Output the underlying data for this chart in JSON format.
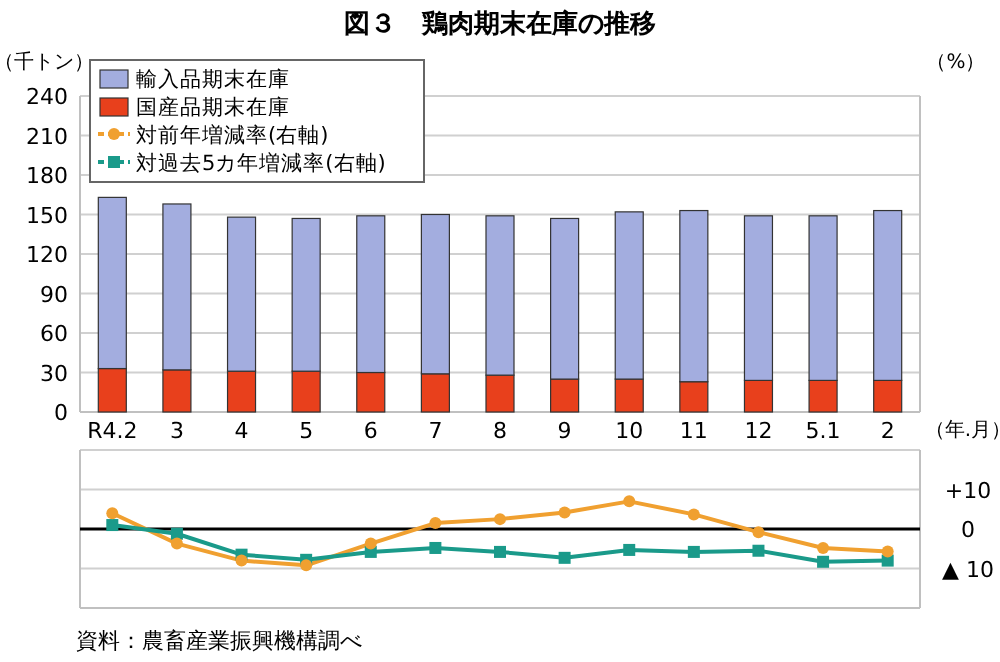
{
  "chart_data": [
    {
      "type": "bar",
      "title": "図３　鶏肉期末在庫の推移",
      "ylabel": "（千トン）",
      "xlabel": "（年.月）",
      "categories": [
        "R4.2",
        "3",
        "4",
        "5",
        "6",
        "7",
        "8",
        "9",
        "10",
        "11",
        "12",
        "5.1",
        "2"
      ],
      "stacked": true,
      "series": [
        {
          "name": "国産品期末在庫",
          "color": "#e8401c",
          "values": [
            33,
            32,
            31,
            31,
            30,
            29,
            28,
            25,
            25,
            23,
            24,
            24,
            24
          ]
        },
        {
          "name": "輸入品期末在庫",
          "color": "#a3addf",
          "values": [
            130,
            126,
            117,
            116,
            119,
            121,
            121,
            122,
            127,
            130,
            125,
            125,
            129
          ]
        }
      ],
      "ylim": [
        0,
        240
      ],
      "yticks": [
        0,
        30,
        60,
        90,
        120,
        150,
        180,
        210,
        240
      ],
      "grid": "y",
      "legend": "top left",
      "annotations": [
        "（%）"
      ]
    },
    {
      "type": "line",
      "categories": [
        null,
        null,
        null,
        null,
        null,
        null,
        null,
        null,
        null,
        null,
        null,
        null,
        null
      ],
      "tick_labels": "y",
      "series": [
        {
          "name": "対前年増減率(右軸)",
          "color": "#f0a030",
          "marker": "circle",
          "values": [
            4,
            -3.7,
            -8,
            -9.2,
            -3.7,
            1.5,
            2.5,
            4.2,
            7,
            3.7,
            -0.8,
            -4.8,
            -5.7
          ]
        },
        {
          "name": "対過去5カ年増減率(右軸)",
          "color": "#1a9a8a",
          "marker": "square",
          "values": [
            1,
            -1.2,
            -6.5,
            -7.8,
            -5.8,
            -4.8,
            -5.8,
            -7.3,
            -5.3,
            -5.8,
            -5.5,
            -8.3,
            -8
          ]
        }
      ],
      "ylim": [
        -20,
        20
      ],
      "yticks": [
        {
          "value": -20,
          "label": null
        },
        {
          "value": -10,
          "label": "▲ 10"
        },
        0,
        {
          "value": 10,
          "label": "+10"
        },
        {
          "value": 20,
          "label": null
        }
      ],
      "grid": "y",
      "ref_lines": [
        {
          "axis": "y",
          "value": 0,
          "color": "#000000"
        }
      ],
      "legend": "top left",
      "annotations": [
        "資料：農畜産業振興機構調べ"
      ]
    }
  ]
}
